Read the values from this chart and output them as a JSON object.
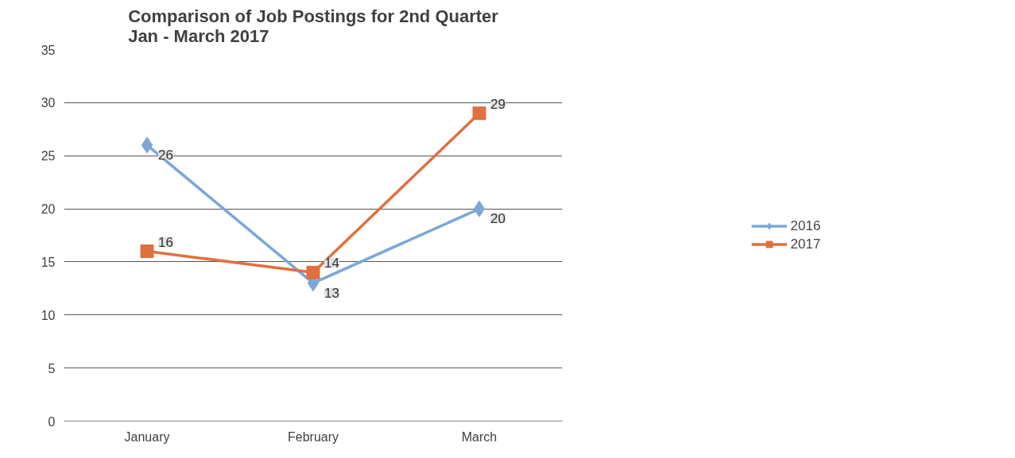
{
  "chart_data": {
    "type": "line",
    "title": "Comparison of Job Postings for 2nd Quarter\nJan - March 2017",
    "categories": [
      "January",
      "February",
      "March"
    ],
    "series": [
      {
        "name": "2016",
        "color": "#7ba7d9",
        "values": [
          26,
          13,
          20
        ],
        "marker": "diamond"
      },
      {
        "name": "2017",
        "color": "#e0703f",
        "values": [
          16,
          14,
          29
        ],
        "marker": "square"
      }
    ],
    "ylim": [
      0,
      35
    ],
    "yticks": [
      0,
      5,
      10,
      15,
      20,
      25,
      30,
      35
    ],
    "grid": "y",
    "legend": "right",
    "data_labels": true,
    "line_style": "solid"
  }
}
